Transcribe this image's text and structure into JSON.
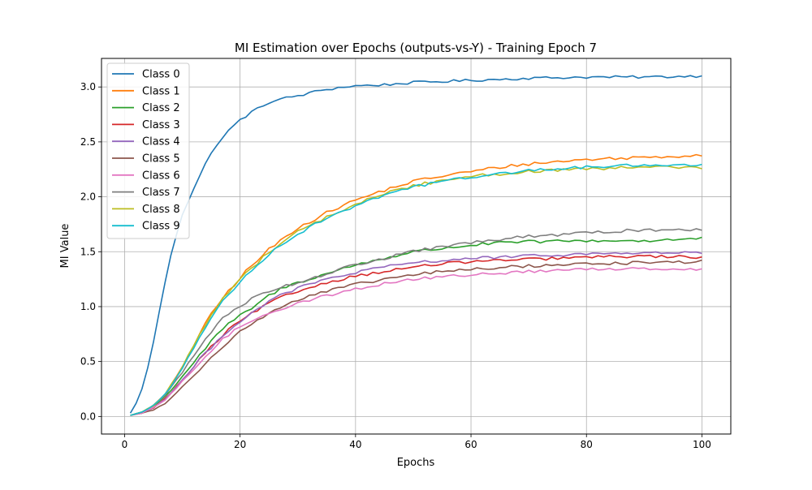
{
  "chart_data": {
    "type": "line",
    "title": "MI Estimation over Epochs (outputs-vs-Y) - Training Epoch 7",
    "xlabel": "Epochs",
    "ylabel": "MI Value",
    "xlim": [
      -4,
      105
    ],
    "ylim": [
      -0.16,
      3.26
    ],
    "x_ticks": [
      0,
      20,
      40,
      60,
      80,
      100
    ],
    "y_ticks": [
      0.0,
      0.5,
      1.0,
      1.5,
      2.0,
      2.5,
      3.0
    ],
    "x_tick_labels": [
      "0",
      "20",
      "40",
      "60",
      "80",
      "100"
    ],
    "y_tick_labels": [
      "0.0",
      "0.5",
      "1.0",
      "1.5",
      "2.0",
      "2.5",
      "3.0"
    ],
    "grid": true,
    "legend_position": "upper-left",
    "epochs_range": [
      1,
      100
    ],
    "series": [
      {
        "name": "Class 0",
        "color": "#1f77b4",
        "anchors": [
          [
            1,
            0.03
          ],
          [
            2,
            0.12
          ],
          [
            3,
            0.25
          ],
          [
            4,
            0.44
          ],
          [
            5,
            0.68
          ],
          [
            6,
            0.95
          ],
          [
            7,
            1.22
          ],
          [
            8,
            1.46
          ],
          [
            9,
            1.66
          ],
          [
            10,
            1.84
          ],
          [
            12,
            2.08
          ],
          [
            14,
            2.3
          ],
          [
            16,
            2.48
          ],
          [
            18,
            2.6
          ],
          [
            20,
            2.7
          ],
          [
            22,
            2.77
          ],
          [
            25,
            2.86
          ],
          [
            28,
            2.9
          ],
          [
            31,
            2.93
          ],
          [
            34,
            2.97
          ],
          [
            38,
            3.0
          ],
          [
            40,
            3.01
          ],
          [
            45,
            3.02
          ],
          [
            50,
            3.04
          ],
          [
            55,
            3.05
          ],
          [
            60,
            3.06
          ],
          [
            70,
            3.08
          ],
          [
            80,
            3.09
          ],
          [
            90,
            3.09
          ],
          [
            100,
            3.1
          ]
        ],
        "noise": 0.012
      },
      {
        "name": "Class 1",
        "color": "#ff7f0e",
        "anchors": [
          [
            1,
            0.01
          ],
          [
            3,
            0.04
          ],
          [
            5,
            0.1
          ],
          [
            7,
            0.2
          ],
          [
            9,
            0.36
          ],
          [
            11,
            0.55
          ],
          [
            13,
            0.75
          ],
          [
            15,
            0.93
          ],
          [
            17,
            1.08
          ],
          [
            19,
            1.2
          ],
          [
            21,
            1.32
          ],
          [
            23,
            1.42
          ],
          [
            25,
            1.52
          ],
          [
            27,
            1.6
          ],
          [
            30,
            1.72
          ],
          [
            33,
            1.8
          ],
          [
            36,
            1.88
          ],
          [
            40,
            1.97
          ],
          [
            45,
            2.06
          ],
          [
            50,
            2.14
          ],
          [
            55,
            2.19
          ],
          [
            60,
            2.23
          ],
          [
            65,
            2.27
          ],
          [
            70,
            2.3
          ],
          [
            80,
            2.34
          ],
          [
            90,
            2.36
          ],
          [
            100,
            2.38
          ]
        ],
        "noise": 0.015
      },
      {
        "name": "Class 2",
        "color": "#2ca02c",
        "anchors": [
          [
            1,
            0.01
          ],
          [
            3,
            0.04
          ],
          [
            5,
            0.09
          ],
          [
            7,
            0.18
          ],
          [
            9,
            0.3
          ],
          [
            11,
            0.43
          ],
          [
            13,
            0.56
          ],
          [
            15,
            0.68
          ],
          [
            17,
            0.8
          ],
          [
            19,
            0.88
          ],
          [
            21,
            0.95
          ],
          [
            23,
            1.02
          ],
          [
            25,
            1.1
          ],
          [
            27,
            1.16
          ],
          [
            30,
            1.22
          ],
          [
            35,
            1.3
          ],
          [
            40,
            1.38
          ],
          [
            45,
            1.44
          ],
          [
            50,
            1.5
          ],
          [
            55,
            1.53
          ],
          [
            60,
            1.56
          ],
          [
            65,
            1.58
          ],
          [
            70,
            1.59
          ],
          [
            80,
            1.6
          ],
          [
            90,
            1.6
          ],
          [
            100,
            1.62
          ]
        ],
        "noise": 0.014
      },
      {
        "name": "Class 3",
        "color": "#d62728",
        "anchors": [
          [
            1,
            0.01
          ],
          [
            3,
            0.03
          ],
          [
            5,
            0.08
          ],
          [
            7,
            0.16
          ],
          [
            9,
            0.27
          ],
          [
            11,
            0.39
          ],
          [
            13,
            0.52
          ],
          [
            15,
            0.63
          ],
          [
            17,
            0.74
          ],
          [
            19,
            0.83
          ],
          [
            21,
            0.9
          ],
          [
            23,
            0.97
          ],
          [
            25,
            1.03
          ],
          [
            27,
            1.08
          ],
          [
            30,
            1.14
          ],
          [
            35,
            1.22
          ],
          [
            40,
            1.28
          ],
          [
            45,
            1.32
          ],
          [
            50,
            1.36
          ],
          [
            55,
            1.39
          ],
          [
            60,
            1.41
          ],
          [
            70,
            1.43
          ],
          [
            80,
            1.45
          ],
          [
            90,
            1.46
          ],
          [
            100,
            1.45
          ]
        ],
        "noise": 0.013
      },
      {
        "name": "Class 4",
        "color": "#9467bd",
        "anchors": [
          [
            1,
            0.01
          ],
          [
            3,
            0.03
          ],
          [
            5,
            0.08
          ],
          [
            7,
            0.16
          ],
          [
            9,
            0.27
          ],
          [
            11,
            0.39
          ],
          [
            13,
            0.52
          ],
          [
            15,
            0.63
          ],
          [
            17,
            0.74
          ],
          [
            19,
            0.83
          ],
          [
            21,
            0.9
          ],
          [
            23,
            0.98
          ],
          [
            25,
            1.05
          ],
          [
            27,
            1.1
          ],
          [
            30,
            1.17
          ],
          [
            35,
            1.25
          ],
          [
            40,
            1.31
          ],
          [
            45,
            1.36
          ],
          [
            50,
            1.4
          ],
          [
            55,
            1.42
          ],
          [
            60,
            1.44
          ],
          [
            70,
            1.46
          ],
          [
            80,
            1.48
          ],
          [
            90,
            1.49
          ],
          [
            100,
            1.49
          ]
        ],
        "noise": 0.013
      },
      {
        "name": "Class 5",
        "color": "#8c564b",
        "anchors": [
          [
            1,
            0.01
          ],
          [
            3,
            0.03
          ],
          [
            5,
            0.06
          ],
          [
            7,
            0.12
          ],
          [
            9,
            0.21
          ],
          [
            11,
            0.32
          ],
          [
            13,
            0.43
          ],
          [
            15,
            0.55
          ],
          [
            17,
            0.64
          ],
          [
            19,
            0.73
          ],
          [
            21,
            0.81
          ],
          [
            23,
            0.87
          ],
          [
            25,
            0.94
          ],
          [
            27,
            1.0
          ],
          [
            30,
            1.06
          ],
          [
            35,
            1.14
          ],
          [
            40,
            1.2
          ],
          [
            45,
            1.25
          ],
          [
            50,
            1.29
          ],
          [
            55,
            1.32
          ],
          [
            60,
            1.34
          ],
          [
            70,
            1.37
          ],
          [
            80,
            1.39
          ],
          [
            90,
            1.4
          ],
          [
            100,
            1.41
          ]
        ],
        "noise": 0.014
      },
      {
        "name": "Class 6",
        "color": "#e377c2",
        "anchors": [
          [
            1,
            0.01
          ],
          [
            3,
            0.03
          ],
          [
            5,
            0.08
          ],
          [
            7,
            0.15
          ],
          [
            9,
            0.26
          ],
          [
            11,
            0.37
          ],
          [
            13,
            0.49
          ],
          [
            15,
            0.6
          ],
          [
            17,
            0.7
          ],
          [
            19,
            0.78
          ],
          [
            21,
            0.85
          ],
          [
            23,
            0.9
          ],
          [
            25,
            0.94
          ],
          [
            27,
            0.98
          ],
          [
            30,
            1.03
          ],
          [
            35,
            1.1
          ],
          [
            40,
            1.16
          ],
          [
            45,
            1.21
          ],
          [
            50,
            1.25
          ],
          [
            55,
            1.27
          ],
          [
            60,
            1.29
          ],
          [
            70,
            1.32
          ],
          [
            80,
            1.34
          ],
          [
            90,
            1.35
          ],
          [
            100,
            1.34
          ]
        ],
        "noise": 0.013
      },
      {
        "name": "Class 7",
        "color": "#7f7f7f",
        "anchors": [
          [
            1,
            0.01
          ],
          [
            3,
            0.04
          ],
          [
            5,
            0.1
          ],
          [
            7,
            0.19
          ],
          [
            9,
            0.33
          ],
          [
            11,
            0.48
          ],
          [
            13,
            0.63
          ],
          [
            15,
            0.77
          ],
          [
            17,
            0.89
          ],
          [
            19,
            0.98
          ],
          [
            21,
            1.04
          ],
          [
            23,
            1.1
          ],
          [
            25,
            1.14
          ],
          [
            27,
            1.18
          ],
          [
            30,
            1.22
          ],
          [
            35,
            1.3
          ],
          [
            40,
            1.38
          ],
          [
            45,
            1.44
          ],
          [
            50,
            1.5
          ],
          [
            55,
            1.55
          ],
          [
            60,
            1.58
          ],
          [
            65,
            1.61
          ],
          [
            70,
            1.64
          ],
          [
            80,
            1.67
          ],
          [
            90,
            1.7
          ],
          [
            100,
            1.7
          ]
        ],
        "noise": 0.014
      },
      {
        "name": "Class 8",
        "color": "#bcbd22",
        "anchors": [
          [
            1,
            0.01
          ],
          [
            3,
            0.04
          ],
          [
            5,
            0.1
          ],
          [
            7,
            0.2
          ],
          [
            9,
            0.36
          ],
          [
            11,
            0.55
          ],
          [
            13,
            0.75
          ],
          [
            15,
            0.93
          ],
          [
            17,
            1.07
          ],
          [
            19,
            1.19
          ],
          [
            21,
            1.3
          ],
          [
            23,
            1.4
          ],
          [
            25,
            1.5
          ],
          [
            27,
            1.58
          ],
          [
            30,
            1.68
          ],
          [
            33,
            1.76
          ],
          [
            36,
            1.84
          ],
          [
            40,
            1.93
          ],
          [
            45,
            2.03
          ],
          [
            50,
            2.1
          ],
          [
            55,
            2.15
          ],
          [
            60,
            2.19
          ],
          [
            65,
            2.21
          ],
          [
            70,
            2.23
          ],
          [
            80,
            2.25
          ],
          [
            90,
            2.27
          ],
          [
            100,
            2.27
          ]
        ],
        "noise": 0.015
      },
      {
        "name": "Class 9",
        "color": "#17becf",
        "anchors": [
          [
            1,
            0.01
          ],
          [
            3,
            0.04
          ],
          [
            5,
            0.1
          ],
          [
            7,
            0.2
          ],
          [
            9,
            0.35
          ],
          [
            11,
            0.53
          ],
          [
            13,
            0.72
          ],
          [
            15,
            0.9
          ],
          [
            17,
            1.05
          ],
          [
            19,
            1.17
          ],
          [
            21,
            1.28
          ],
          [
            23,
            1.38
          ],
          [
            25,
            1.48
          ],
          [
            27,
            1.56
          ],
          [
            30,
            1.66
          ],
          [
            33,
            1.75
          ],
          [
            36,
            1.83
          ],
          [
            40,
            1.92
          ],
          [
            45,
            2.02
          ],
          [
            50,
            2.09
          ],
          [
            55,
            2.14
          ],
          [
            60,
            2.18
          ],
          [
            65,
            2.21
          ],
          [
            70,
            2.24
          ],
          [
            80,
            2.27
          ],
          [
            90,
            2.29
          ],
          [
            100,
            2.29
          ]
        ],
        "noise": 0.013
      }
    ]
  }
}
